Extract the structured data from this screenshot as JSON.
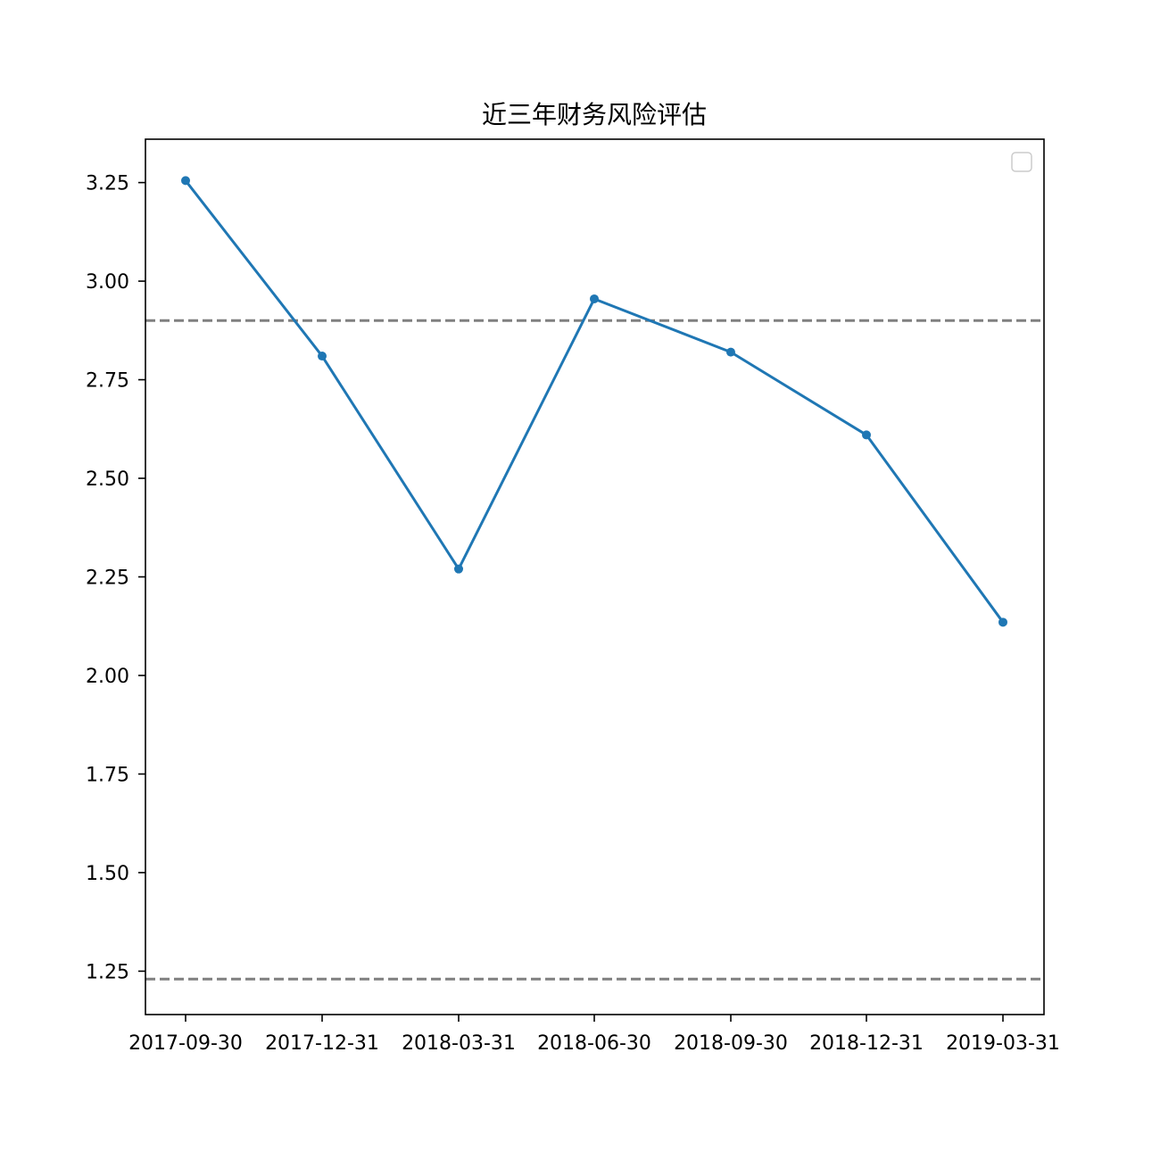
{
  "chart_data": {
    "type": "line",
    "title": "近三年财务风险评估",
    "xlabel": "",
    "ylabel": "",
    "x": [
      "2017-09-30",
      "2017-12-31",
      "2018-03-31",
      "2018-06-30",
      "2018-09-30",
      "2018-12-31",
      "2019-03-31"
    ],
    "series": [
      {
        "values": [
          3.255,
          2.81,
          2.27,
          2.955,
          2.82,
          2.61,
          2.135
        ],
        "color": "#1f77b4"
      }
    ],
    "reference_lines": [
      {
        "y": 2.9,
        "color": "#808080",
        "style": "dashed"
      },
      {
        "y": 1.23,
        "color": "#808080",
        "style": "dashed"
      }
    ],
    "ylim": [
      1.14,
      3.36
    ],
    "yticks": [
      "1.25",
      "1.50",
      "1.75",
      "2.00",
      "2.25",
      "2.50",
      "2.75",
      "3.00",
      "3.25"
    ],
    "grid": false,
    "legend": {
      "placement": "top-right",
      "entries": []
    }
  }
}
